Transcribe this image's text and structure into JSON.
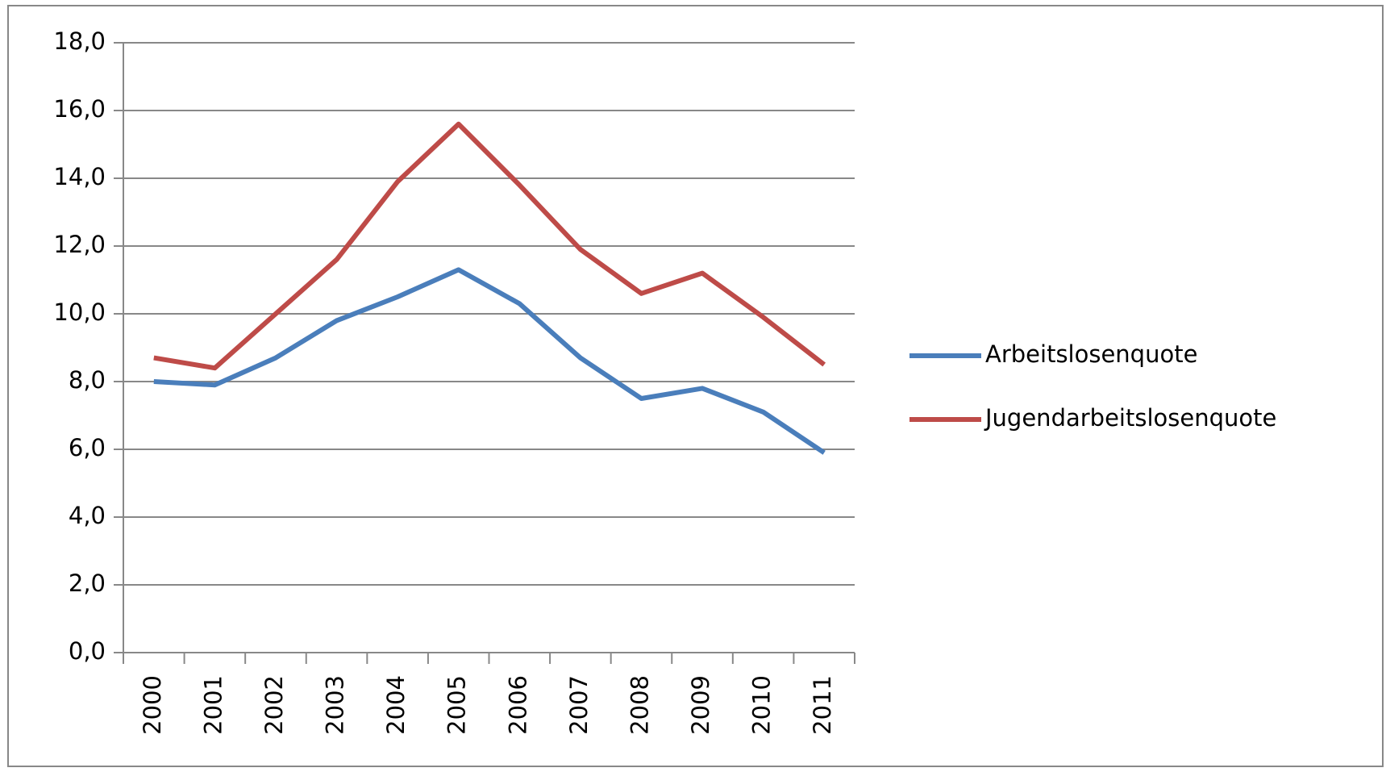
{
  "chart_data": {
    "type": "line",
    "categories": [
      "2000",
      "2001",
      "2002",
      "2003",
      "2004",
      "2005",
      "2006",
      "2007",
      "2008",
      "2009",
      "2010",
      "2011"
    ],
    "series": [
      {
        "name": "Arbeitslosenquote",
        "color": "#4a7ebb",
        "values": [
          8.0,
          7.9,
          8.7,
          9.8,
          10.5,
          11.3,
          10.3,
          8.7,
          7.5,
          7.8,
          7.1,
          5.9
        ]
      },
      {
        "name": "Jugendarbeitslosenquote",
        "color": "#be4b48",
        "values": [
          8.7,
          8.4,
          10.0,
          11.6,
          13.9,
          15.6,
          13.8,
          11.9,
          10.6,
          11.2,
          9.9,
          8.5
        ]
      }
    ],
    "ylim": [
      0,
      18
    ],
    "yticks": [
      {
        "value": 0,
        "label": "0,0"
      },
      {
        "value": 2,
        "label": "2,0"
      },
      {
        "value": 4,
        "label": "4,0"
      },
      {
        "value": 6,
        "label": "6,0"
      },
      {
        "value": 8,
        "label": "8,0"
      },
      {
        "value": 10,
        "label": "10,0"
      },
      {
        "value": 12,
        "label": "12,0"
      },
      {
        "value": 14,
        "label": "14,0"
      },
      {
        "value": 16,
        "label": "16,0"
      },
      {
        "value": 18,
        "label": "18,0"
      }
    ],
    "grid": true,
    "legend": "right"
  }
}
